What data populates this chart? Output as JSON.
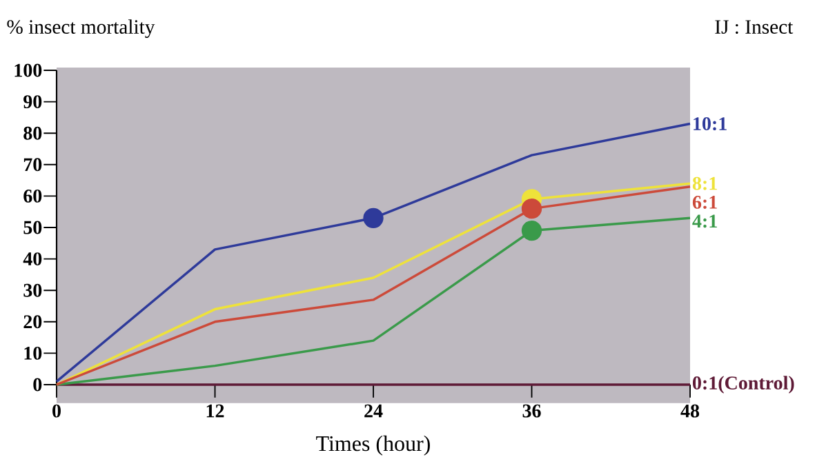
{
  "chart_data": {
    "type": "line",
    "ylabel": "% insect mortality",
    "xlabel": "Times (hour)",
    "legend_title": "IJ : Insect",
    "x": [
      0,
      12,
      24,
      36,
      48
    ],
    "xlim": [
      0,
      48
    ],
    "xticks": [
      0,
      12,
      24,
      36,
      48
    ],
    "ylim": [
      0,
      100
    ],
    "yticks": [
      0,
      10,
      20,
      30,
      40,
      50,
      60,
      70,
      80,
      90,
      100
    ],
    "line_style": "solid",
    "grid": false,
    "series": [
      {
        "name": "0:1(Control)",
        "color": "#5e1a36",
        "values": [
          0,
          0,
          0,
          0,
          0
        ]
      },
      {
        "name": "4:1",
        "color": "#3a9a4a",
        "values": [
          0,
          6,
          14,
          49,
          53
        ]
      },
      {
        "name": "8:1",
        "color": "#eee23a",
        "values": [
          0,
          24,
          34,
          59,
          64
        ]
      },
      {
        "name": "6:1",
        "color": "#cc4a3a",
        "values": [
          0,
          20,
          27,
          56,
          63
        ]
      },
      {
        "name": "10:1",
        "color": "#2e3a9a",
        "values": [
          1,
          43,
          53,
          73,
          83
        ]
      },
      {
        "type": "scatter",
        "marker": "circle",
        "color": "#eee23a",
        "values": [
          null,
          null,
          null,
          59,
          null
        ]
      },
      {
        "type": "scatter",
        "marker": "circle",
        "color": "#cc4a3a",
        "values": [
          null,
          null,
          null,
          56,
          null
        ]
      },
      {
        "type": "scatter",
        "marker": "circle",
        "color": "#3a9a4a",
        "values": [
          null,
          null,
          null,
          49,
          null
        ]
      },
      {
        "type": "scatter",
        "marker": "circle",
        "color": "#2e3a9a",
        "values": [
          null,
          null,
          53,
          null,
          null
        ]
      }
    ]
  }
}
